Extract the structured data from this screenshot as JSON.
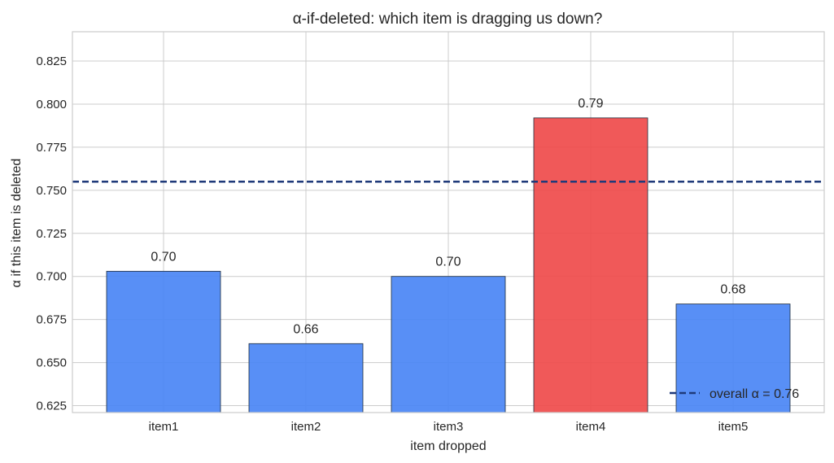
{
  "chart_data": {
    "type": "bar",
    "title": "α-if-deleted: which item is dragging us down?",
    "xlabel": "item dropped",
    "ylabel": "α if this item is deleted",
    "categories": [
      "item1",
      "item2",
      "item3",
      "item4",
      "item5"
    ],
    "values": [
      0.703,
      0.661,
      0.7,
      0.792,
      0.684
    ],
    "data_labels": [
      "0.70",
      "0.66",
      "0.70",
      "0.79",
      "0.68"
    ],
    "highlight_category": "item4",
    "ylim": [
      0.621,
      0.842
    ],
    "yticks": [
      0.625,
      0.65,
      0.675,
      0.7,
      0.725,
      0.75,
      0.775,
      0.8,
      0.825
    ],
    "ytick_labels": [
      "0.625",
      "0.650",
      "0.675",
      "0.700",
      "0.725",
      "0.750",
      "0.775",
      "0.800",
      "0.825"
    ],
    "grid": true,
    "reference_line": {
      "value": 0.755,
      "label": "overall α = 0.76"
    },
    "legend_position": "lower-right",
    "colors": {
      "bar": "#4a86f5",
      "highlight_bar": "#ef4b4b",
      "bar_edge": "#1f2d3d",
      "reference_line": "#1f3a7a"
    }
  }
}
